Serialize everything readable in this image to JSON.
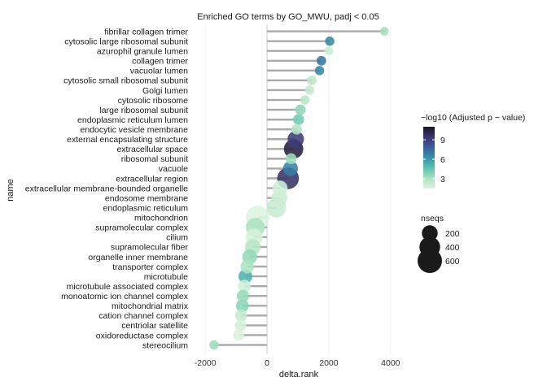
{
  "chart_data": {
    "type": "scatter",
    "title": "Enriched GO terms by GO_MWU, padj < 0.05",
    "xlabel": "delta.rank",
    "ylabel": "name",
    "xlim": [
      -2400,
      4400
    ],
    "xticks": [
      -2000,
      0,
      2000,
      4000
    ],
    "grid": true,
    "categories": [
      "fibrillar collagen trimer",
      "cytosolic large ribosomal subunit",
      "azurophil granule lumen",
      "collagen trimer",
      "vacuolar lumen",
      "cytosolic small ribosomal subunit",
      "Golgi lumen",
      "cytosolic ribosome",
      "large ribosomal subunit",
      "endoplasmic reticulum lumen",
      "endocytic vesicle membrane",
      "external encapsulating structure",
      "extracellular space",
      "ribosomal subunit",
      "vacuole",
      "extracellular region",
      "extracellular membrane-bounded organelle",
      "endosome membrane",
      "endoplasmic reticulum",
      "mitochondrion",
      "supramolecular complex",
      "cilium",
      "supramolecular fiber",
      "organelle inner membrane",
      "transporter complex",
      "microtubule",
      "microtubule associated complex",
      "monoatomic ion channel complex",
      "mitochondrial matrix",
      "cation channel complex",
      "centriolar satellite",
      "oxidoreductase complex",
      "stereocilium"
    ],
    "delta_rank": [
      3800,
      2030,
      2000,
      1760,
      1700,
      1450,
      1380,
      1230,
      1080,
      1020,
      960,
      930,
      860,
      780,
      760,
      680,
      420,
      400,
      300,
      -300,
      -380,
      -420,
      -460,
      -560,
      -640,
      -700,
      -730,
      -780,
      -800,
      -840,
      -860,
      -920,
      -1720
    ],
    "neg_log10_padj": [
      3.2,
      6.5,
      2.1,
      7.0,
      6.6,
      2.5,
      2.3,
      2.6,
      3.6,
      4.2,
      2.8,
      9.2,
      10.5,
      3.3,
      6.8,
      9.6,
      2.0,
      2.1,
      2.2,
      1.6,
      3.0,
      1.8,
      2.7,
      3.5,
      2.9,
      5.2,
      2.0,
      3.4,
      3.7,
      2.3,
      1.9,
      1.7,
      3.3
    ],
    "nseqs": [
      30,
      40,
      30,
      45,
      40,
      45,
      40,
      40,
      60,
      70,
      60,
      220,
      340,
      70,
      170,
      450,
      180,
      210,
      350,
      560,
      320,
      240,
      200,
      170,
      130,
      140,
      110,
      100,
      110,
      90,
      80,
      70,
      40
    ],
    "color_legend": {
      "title": "−log10 (Adjusted p − value)",
      "ticks": [
        3,
        6,
        9
      ],
      "range": [
        1.5,
        11
      ],
      "colors": [
        "#dff5e1",
        "#a8e1bd",
        "#5cc2b2",
        "#3592a8",
        "#3a5d9c",
        "#3c3770",
        "#1c1426"
      ]
    },
    "size_legend": {
      "title": "nseqs",
      "values": [
        200,
        400,
        600
      ]
    },
    "segment_color": "#a9a9a9",
    "zero_line_color": "#cfcfcf"
  }
}
